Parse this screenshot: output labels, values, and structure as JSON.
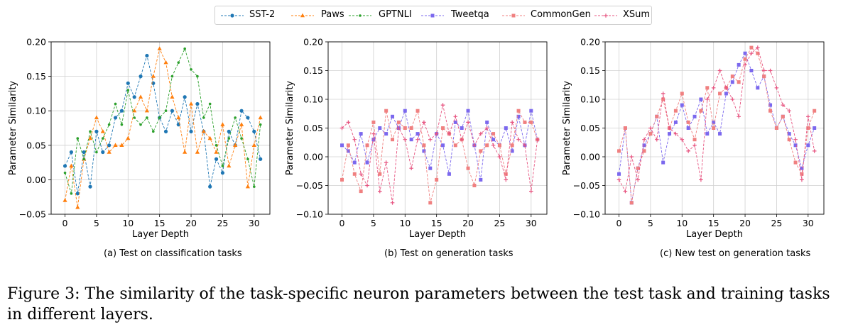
{
  "legend": {
    "items": [
      {
        "label": "SST-2",
        "color": "#1f77b4",
        "marker": "circle"
      },
      {
        "label": "Paws",
        "color": "#ff7f0e",
        "marker": "triangle"
      },
      {
        "label": "GPTNLI",
        "color": "#2ca02c",
        "marker": "dot"
      },
      {
        "label": "Tweetqa",
        "color": "#7b68ee",
        "marker": "square"
      },
      {
        "label": "CommonGen",
        "color": "#f08080",
        "marker": "square"
      },
      {
        "label": "XSum",
        "color": "#e75480",
        "marker": "plus"
      }
    ]
  },
  "chart_data": [
    {
      "type": "line",
      "caption": "(a) Test on classification tasks",
      "xlabel": "Layer Depth",
      "ylabel": "Parameter Similarity",
      "xlim": [
        -2.2,
        32.5
      ],
      "ylim": [
        -0.05,
        0.2
      ],
      "xticks": [
        "0",
        "5",
        "10",
        "15",
        "20",
        "25",
        "30"
      ],
      "yticks": [
        "−0.05",
        "0.00",
        "0.05",
        "0.10",
        "0.15",
        "0.20"
      ],
      "grid": true,
      "x": [
        0,
        1,
        2,
        3,
        4,
        5,
        6,
        7,
        8,
        9,
        10,
        11,
        12,
        13,
        14,
        15,
        16,
        17,
        18,
        19,
        20,
        21,
        22,
        23,
        24,
        25,
        26,
        27,
        28,
        29,
        30,
        31
      ],
      "series": [
        {
          "name": "SST-2",
          "color": "#1f77b4",
          "marker": "circle",
          "values": [
            0.02,
            0.04,
            -0.02,
            0.04,
            -0.01,
            0.07,
            0.04,
            0.05,
            0.09,
            0.1,
            0.14,
            0.12,
            0.15,
            0.18,
            0.14,
            0.09,
            0.07,
            0.1,
            0.08,
            0.12,
            0.07,
            0.11,
            0.07,
            -0.01,
            0.03,
            0.01,
            0.07,
            0.05,
            0.1,
            0.09,
            0.07,
            0.03
          ]
        },
        {
          "name": "Paws",
          "color": "#ff7f0e",
          "marker": "triangle",
          "values": [
            -0.03,
            0.02,
            -0.04,
            0.03,
            0.06,
            0.09,
            0.07,
            0.04,
            0.05,
            0.05,
            0.06,
            0.1,
            0.12,
            0.1,
            0.15,
            0.19,
            0.17,
            0.12,
            0.09,
            0.04,
            0.11,
            0.04,
            0.07,
            0.06,
            0.04,
            0.08,
            0.02,
            0.05,
            0.08,
            -0.01,
            0.05,
            0.09
          ]
        },
        {
          "name": "GPTNLI",
          "color": "#2ca02c",
          "marker": "dot",
          "values": [
            0.01,
            -0.02,
            0.06,
            0.03,
            0.07,
            0.04,
            0.06,
            0.08,
            0.11,
            0.08,
            0.13,
            0.09,
            0.08,
            0.09,
            0.07,
            0.09,
            0.1,
            0.15,
            0.17,
            0.19,
            0.16,
            0.15,
            0.09,
            0.11,
            0.05,
            0.02,
            0.06,
            0.09,
            0.06,
            0.03,
            -0.01,
            0.08
          ]
        }
      ]
    },
    {
      "type": "line",
      "caption": "(b) Test on generation tasks",
      "xlabel": "Layer Depth",
      "ylabel": "Parameter Similarity",
      "xlim": [
        -2.2,
        32.5
      ],
      "ylim": [
        -0.1,
        0.2
      ],
      "xticks": [
        "0",
        "5",
        "10",
        "15",
        "20",
        "25",
        "30"
      ],
      "yticks": [
        "−0.10",
        "−0.05",
        "0.00",
        "0.05",
        "0.10",
        "0.15",
        "0.20"
      ],
      "grid": true,
      "x": [
        0,
        1,
        2,
        3,
        4,
        5,
        6,
        7,
        8,
        9,
        10,
        11,
        12,
        13,
        14,
        15,
        16,
        17,
        18,
        19,
        20,
        21,
        22,
        23,
        24,
        25,
        26,
        27,
        28,
        29,
        30,
        31
      ],
      "series": [
        {
          "name": "Tweetqa",
          "color": "#7b68ee",
          "marker": "square",
          "values": [
            0.02,
            0.01,
            -0.01,
            0.04,
            -0.01,
            0.03,
            0.05,
            0.04,
            0.07,
            0.05,
            0.08,
            0.03,
            0.04,
            0.01,
            -0.02,
            0.04,
            0.02,
            -0.03,
            0.06,
            0.05,
            0.08,
            0.02,
            -0.04,
            0.06,
            0.03,
            0.02,
            0.05,
            0.01,
            0.07,
            0.02,
            0.08,
            0.03
          ]
        },
        {
          "name": "CommonGen",
          "color": "#f08080",
          "marker": "square",
          "values": [
            -0.04,
            0.02,
            -0.03,
            -0.06,
            0.02,
            0.06,
            -0.03,
            0.08,
            0.03,
            0.06,
            0.05,
            0.05,
            0.08,
            0.02,
            -0.08,
            -0.04,
            0.05,
            0.04,
            0.02,
            0.03,
            -0.02,
            -0.05,
            0.01,
            0.02,
            0.04,
            0.02,
            -0.03,
            0.02,
            0.08,
            0.06,
            0.06,
            0.03
          ]
        },
        {
          "name": "XSum",
          "color": "#e75480",
          "marker": "plus",
          "values": [
            0.05,
            0.06,
            0.03,
            -0.03,
            -0.05,
            0.04,
            -0.06,
            -0.01,
            -0.08,
            0.05,
            0.03,
            -0.02,
            0.03,
            0.06,
            0.03,
            0.04,
            0.09,
            0.04,
            0.07,
            0.03,
            0.06,
            0.02,
            0.04,
            0.05,
            0.02,
            0.0,
            -0.04,
            0.06,
            0.03,
            0.02,
            -0.06,
            0.03
          ]
        }
      ]
    },
    {
      "type": "line",
      "caption": "(c) New test on generation tasks",
      "xlabel": "Layer Depth",
      "ylabel": "Parameter Similarity",
      "xlim": [
        -2.2,
        32.5
      ],
      "ylim": [
        -0.1,
        0.2
      ],
      "xticks": [
        "0",
        "5",
        "10",
        "15",
        "20",
        "25",
        "30"
      ],
      "yticks": [
        "−0.10",
        "−0.05",
        "0.00",
        "0.05",
        "0.10",
        "0.15",
        "0.20"
      ],
      "grid": true,
      "x": [
        0,
        1,
        2,
        3,
        4,
        5,
        6,
        7,
        8,
        9,
        10,
        11,
        12,
        13,
        14,
        15,
        16,
        17,
        18,
        19,
        20,
        21,
        22,
        23,
        24,
        25,
        26,
        27,
        28,
        29,
        30,
        31
      ],
      "series": [
        {
          "name": "Tweetqa",
          "color": "#7b68ee",
          "marker": "square",
          "values": [
            -0.03,
            0.05,
            -0.08,
            -0.02,
            0.02,
            0.04,
            0.07,
            -0.01,
            0.04,
            0.06,
            0.09,
            0.05,
            0.07,
            0.1,
            0.04,
            0.06,
            0.04,
            0.11,
            0.13,
            0.16,
            0.18,
            0.15,
            0.12,
            0.14,
            0.09,
            0.05,
            0.07,
            0.04,
            0.02,
            -0.02,
            0.02,
            0.05
          ]
        },
        {
          "name": "CommonGen",
          "color": "#f08080",
          "marker": "square",
          "values": [
            0.01,
            0.05,
            -0.08,
            -0.02,
            0.01,
            0.04,
            0.07,
            0.1,
            0.05,
            0.08,
            0.11,
            0.06,
            0.03,
            0.08,
            0.12,
            0.05,
            0.11,
            0.12,
            0.14,
            0.13,
            0.17,
            0.19,
            0.18,
            0.14,
            0.08,
            0.05,
            0.07,
            0.03,
            -0.01,
            -0.03,
            0.05,
            0.08
          ]
        },
        {
          "name": "XSum",
          "color": "#e75480",
          "marker": "plus",
          "values": [
            -0.04,
            -0.06,
            0.0,
            -0.04,
            0.03,
            0.05,
            0.03,
            0.11,
            0.05,
            0.04,
            0.03,
            0.01,
            0.02,
            -0.04,
            0.1,
            0.12,
            0.15,
            0.12,
            0.1,
            0.07,
            0.16,
            0.18,
            0.19,
            0.15,
            0.15,
            0.12,
            0.09,
            0.08,
            0.03,
            -0.04,
            0.07,
            0.01
          ]
        }
      ]
    }
  ],
  "figure_caption": "Figure 3: The similarity of the task-specific neuron parameters between the test task and training tasks in different layers."
}
